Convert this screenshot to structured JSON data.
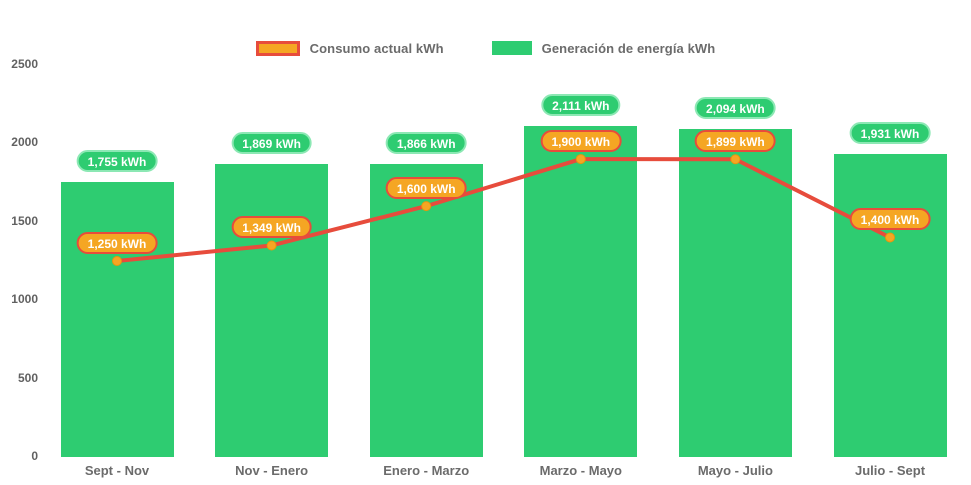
{
  "legend": {
    "items": [
      {
        "label": "Consumo actual kWh",
        "swatch_fill": "#f5a623",
        "swatch_border": "#e74c3c"
      },
      {
        "label": "Generación de energía kWh",
        "swatch_fill": "#2ecc71",
        "swatch_border": null
      }
    ]
  },
  "chart_data": {
    "type": "bar",
    "subtype": "bar-with-line-overlay",
    "title": "",
    "xlabel": "",
    "ylabel": "",
    "categories": [
      "Sept - Nov",
      "Nov - Enero",
      "Enero - Marzo",
      "Marzo - Mayo",
      "Mayo - Julio",
      "Julio - Sept"
    ],
    "series": [
      {
        "name": "Generación de energía kWh",
        "type": "bar",
        "color": "#2ecc71",
        "values": [
          1755,
          1869,
          1866,
          2111,
          2094,
          1931
        ],
        "value_labels": [
          "1,755 kWh",
          "1,869 kWh",
          "1,866 kWh",
          "2,111 kWh",
          "2,094 kWh",
          "1,931 kWh"
        ]
      },
      {
        "name": "Consumo actual kWh",
        "type": "line",
        "color": "#e74c3c",
        "marker_color": "#f5a623",
        "values": [
          1250,
          1349,
          1600,
          1900,
          1899,
          1400
        ],
        "value_labels": [
          "1,250 kWh",
          "1,349 kWh",
          "1,600 kWh",
          "1,900 kWh",
          "1,899 kWh",
          "1,400 kWh"
        ]
      }
    ],
    "ylim": [
      0,
      2500
    ],
    "yticks": [
      0,
      500,
      1000,
      1500,
      2000,
      2500
    ],
    "ytick_labels": [
      "0",
      "500",
      "1000",
      "1500",
      "2000",
      "2500"
    ],
    "grid": false,
    "legend_position": "top-center"
  },
  "colors": {
    "bar_green": "#2ecc71",
    "bar_badge_border": "#8ce8b4",
    "line_red": "#e74c3c",
    "marker_orange": "#f5a623",
    "axis_text": "#6b6b6b",
    "background": "#ffffff"
  }
}
